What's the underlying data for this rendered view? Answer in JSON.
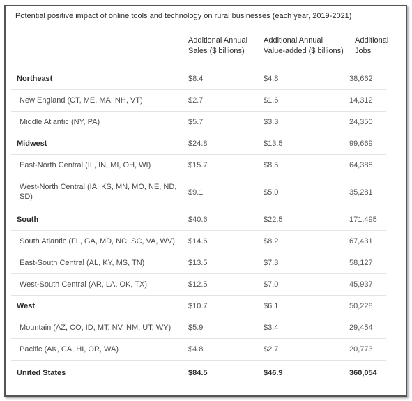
{
  "title": "Potential positive impact of online tools and technology on rural businesses (each year, 2019-2021)",
  "columns": [
    {
      "line1": "Additional Annual",
      "line2": "Sales ($ billions)"
    },
    {
      "line1": "Additional Annual",
      "line2": "Value-added ($ billions)"
    },
    {
      "line1": "Additional",
      "line2": "Jobs"
    }
  ],
  "rows": [
    {
      "label": "Northeast",
      "sales": "$8.4",
      "value_added": "$4.8",
      "jobs": "38,662"
    },
    {
      "label": "New England (CT, ME, MA, NH, VT)",
      "sales": "$2.7",
      "value_added": "$1.6",
      "jobs": "14,312"
    },
    {
      "label": "Middle Atlantic (NY, PA)",
      "sales": "$5.7",
      "value_added": "$3.3",
      "jobs": "24,350"
    },
    {
      "label": "Midwest",
      "sales": "$24.8",
      "value_added": "$13.5",
      "jobs": "99,669"
    },
    {
      "label": "East-North Central (IL, IN, MI, OH, WI)",
      "sales": "$15.7",
      "value_added": "$8.5",
      "jobs": "64,388"
    },
    {
      "label": "West-North Central (IA, KS, MN, MO, NE, ND, SD)",
      "sales": "$9.1",
      "value_added": "$5.0",
      "jobs": "35,281"
    },
    {
      "label": "South",
      "sales": "$40.6",
      "value_added": "$22.5",
      "jobs": "171,495"
    },
    {
      "label": "South Atlantic (FL, GA, MD, NC, SC, VA, WV)",
      "sales": "$14.6",
      "value_added": "$8.2",
      "jobs": "67,431"
    },
    {
      "label": "East-South Central (AL, KY, MS, TN)",
      "sales": "$13.5",
      "value_added": "$7.3",
      "jobs": "58,127"
    },
    {
      "label": "West-South Central (AR, LA, OK, TX)",
      "sales": "$12.5",
      "value_added": "$7.0",
      "jobs": "45,937"
    },
    {
      "label": "West",
      "sales": "$10.7",
      "value_added": "$6.1",
      "jobs": "50,228"
    },
    {
      "label": "Mountain (AZ, CO, ID, MT, NV, NM, UT, WY)",
      "sales": "$5.9",
      "value_added": "$3.4",
      "jobs": "29,454"
    },
    {
      "label": "Pacific (AK, CA, HI, OR, WA)",
      "sales": "$4.8",
      "value_added": "$2.7",
      "jobs": "20,773"
    },
    {
      "label": "United States",
      "sales": "$84.5",
      "value_added": "$46.9",
      "jobs": "360,054"
    }
  ]
}
